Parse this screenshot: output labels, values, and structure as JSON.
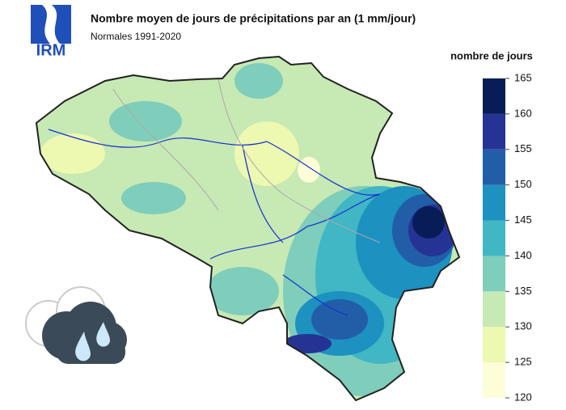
{
  "logo": "IRM",
  "title": "Nombre moyen de jours de précipitations par an (1 mm/jour)",
  "subtitle": "Normales 1991-2020",
  "legend": {
    "title": "nombre de jours",
    "ticks": [
      120,
      125,
      130,
      135,
      140,
      145,
      150,
      155,
      160,
      165
    ],
    "colors": [
      "#fdfdd8",
      "#edf8b1",
      "#c7e9b4",
      "#7fcdbb",
      "#41b6c4",
      "#1d91c0",
      "#225ea8",
      "#253494",
      "#081d58"
    ]
  }
}
